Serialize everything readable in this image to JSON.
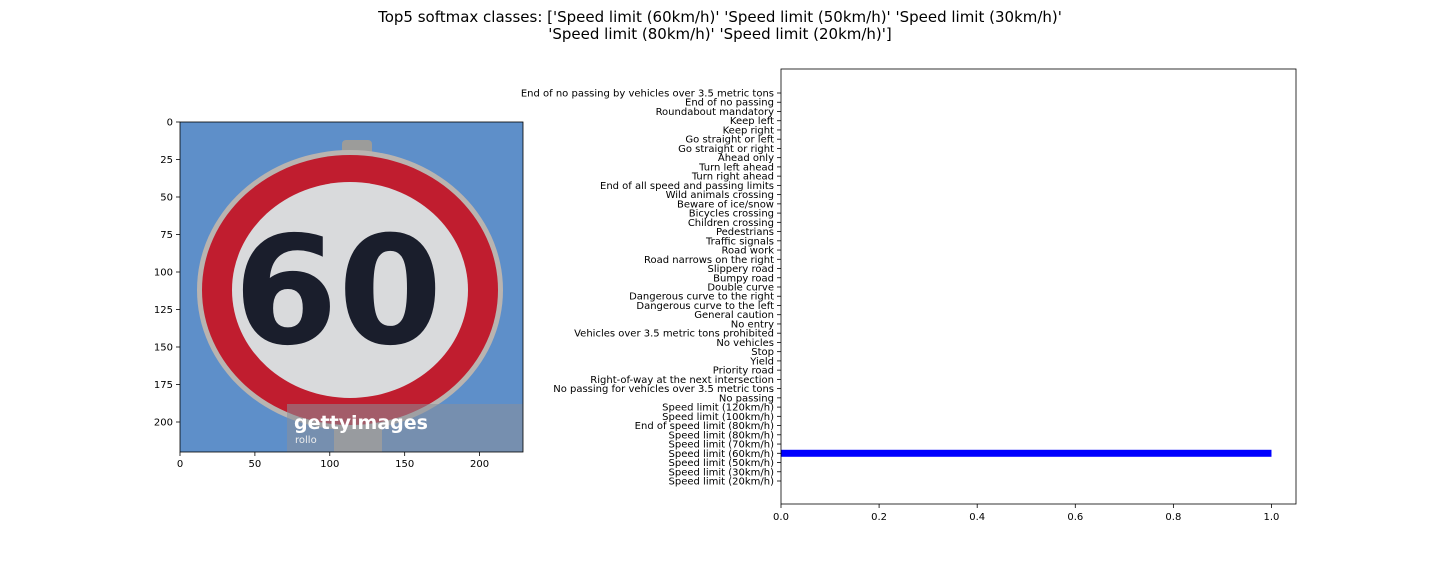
{
  "figure": {
    "title_lines": [
      "Top5 softmax classes: ['Speed limit (60km/h)' 'Speed limit (50km/h)' 'Speed limit (30km/h)'",
      "'Speed limit (80km/h)' 'Speed limit (20km/h)']"
    ]
  },
  "image_panel": {
    "sign_text": "60",
    "watermark_text": "gettyimages",
    "watermark_sub": "rollo",
    "colors": {
      "sky": "#5e8fc9",
      "ring": "#c01d2f",
      "face": "#d9dadc",
      "digits": "#1a1e2c",
      "rim": "#b9b4b0"
    }
  },
  "chart_data": [
    {
      "type": "image",
      "x_ticks": [
        0,
        50,
        100,
        150,
        200
      ],
      "y_ticks": [
        0,
        25,
        50,
        75,
        100,
        125,
        150,
        175,
        200
      ],
      "xlim": [
        0,
        229
      ],
      "ylim": [
        0,
        220
      ],
      "y_inverted": true
    },
    {
      "type": "bar",
      "orientation": "horizontal",
      "categories": [
        "Speed limit (20km/h)",
        "Speed limit (30km/h)",
        "Speed limit (50km/h)",
        "Speed limit (60km/h)",
        "Speed limit (70km/h)",
        "Speed limit (80km/h)",
        "End of speed limit (80km/h)",
        "Speed limit (100km/h)",
        "Speed limit (120km/h)",
        "No passing",
        "No passing for vehicles over 3.5 metric tons",
        "Right-of-way at the next intersection",
        "Priority road",
        "Yield",
        "Stop",
        "No vehicles",
        "Vehicles over 3.5 metric tons prohibited",
        "No entry",
        "General caution",
        "Dangerous curve to the left",
        "Dangerous curve to the right",
        "Double curve",
        "Bumpy road",
        "Slippery road",
        "Road narrows on the right",
        "Road work",
        "Traffic signals",
        "Pedestrians",
        "Children crossing",
        "Bicycles crossing",
        "Beware of ice/snow",
        "Wild animals crossing",
        "End of all speed and passing limits",
        "Turn right ahead",
        "Turn left ahead",
        "Ahead only",
        "Go straight or right",
        "Go straight or left",
        "Keep right",
        "Keep left",
        "Roundabout mandatory",
        "End of no passing",
        "End of no passing by vehicles over 3.5 metric tons"
      ],
      "values": [
        0.0,
        0.0,
        0.0,
        1.0,
        0.0,
        0.0,
        0.0,
        0.0,
        0.0,
        0.0,
        0.0,
        0.0,
        0.0,
        0.0,
        0.0,
        0.0,
        0.0,
        0.0,
        0.0,
        0.0,
        0.0,
        0.0,
        0.0,
        0.0,
        0.0,
        0.0,
        0.0,
        0.0,
        0.0,
        0.0,
        0.0,
        0.0,
        0.0,
        0.0,
        0.0,
        0.0,
        0.0,
        0.0,
        0.0,
        0.0,
        0.0,
        0.0,
        0.0
      ],
      "xlim": [
        0.0,
        1.05
      ],
      "x_ticks": [
        "0.0",
        "0.2",
        "0.4",
        "0.6",
        "0.8",
        "1.0"
      ],
      "bar_color": "#0000ff",
      "grid": false
    }
  ]
}
